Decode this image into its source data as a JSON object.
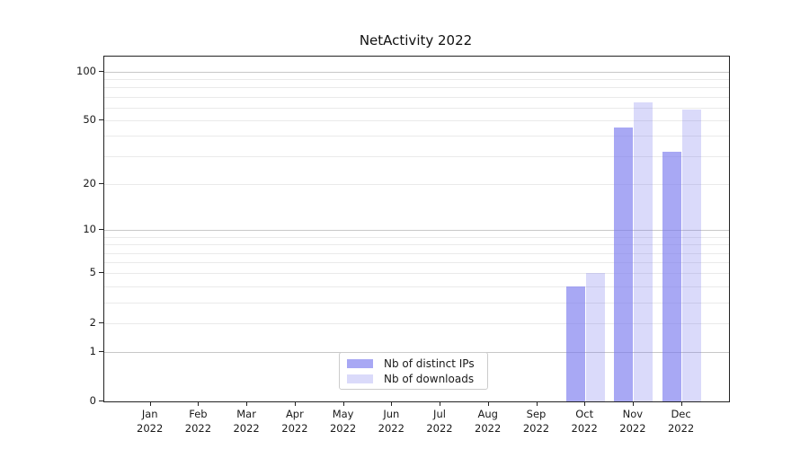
{
  "figure": {
    "title": "NetActivity 2022"
  },
  "chart_data": {
    "type": "bar",
    "title": "NetActivity 2022",
    "xlabel": "",
    "ylabel": "",
    "categories": [
      "Jan",
      "Feb",
      "Mar",
      "Apr",
      "May",
      "Jun",
      "Jul",
      "Aug",
      "Sep",
      "Oct",
      "Nov",
      "Dec"
    ],
    "category_sublabel": "2022",
    "series": [
      {
        "name": "Nb of distinct IPs",
        "color": "#7777ee",
        "alpha": 0.64,
        "values": [
          0,
          0,
          0,
          0,
          0,
          0,
          0,
          0,
          0,
          4,
          45,
          32
        ]
      },
      {
        "name": "Nb of downloads",
        "color": "#7777ee",
        "alpha": 0.27,
        "values": [
          0,
          0,
          0,
          0,
          0,
          0,
          0,
          0,
          0,
          5,
          65,
          58
        ]
      }
    ],
    "yscale": "log1p",
    "ylim": [
      0,
      123
    ],
    "y_tick_values": [
      0,
      1,
      2,
      5,
      10,
      20,
      50,
      100
    ],
    "y_tick_labels": [
      "0",
      "1",
      "2",
      "5",
      "10",
      "20",
      "50",
      "100"
    ],
    "y_major_gridlines": [
      1,
      10,
      100
    ],
    "y_minor_gridlines": [
      2,
      3,
      4,
      5,
      6,
      7,
      8,
      9,
      20,
      30,
      40,
      50,
      60,
      70,
      80,
      90
    ],
    "grid": "horizontal",
    "legend_position": "lower center",
    "colors": {
      "bar_base": "#7777ee",
      "major_grid": "#c8c8c8",
      "minor_grid": "#eaeaea",
      "axis": "#222222",
      "text": "#1a1a1a",
      "background": "#ffffff"
    }
  }
}
